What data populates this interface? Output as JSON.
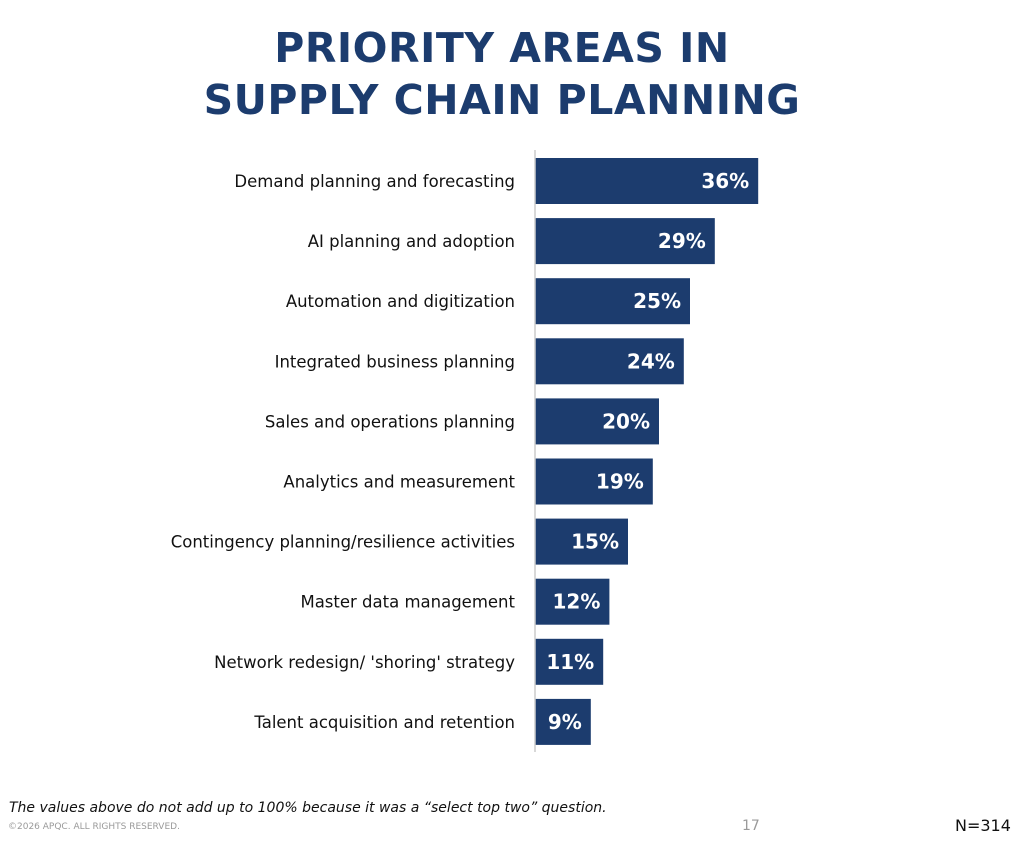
{
  "title_lines": [
    "PRIORITY AREAS IN",
    "SUPPLY CHAIN PLANNING"
  ],
  "footnote": "The values above do not add up to 100% because it was a “select top two” question.",
  "copyright": "©2026 APQC. ALL RIGHTS RESERVED.",
  "page_number": "17",
  "sample_size": "N=314",
  "colors": {
    "bar": "#1c3c6e",
    "title": "#1c3c6e",
    "axis": "#cccccc",
    "bar_label": "#ffffff"
  },
  "chart_data": {
    "type": "bar",
    "orientation": "horizontal",
    "title": "PRIORITY AREAS IN SUPPLY CHAIN PLANNING",
    "xlabel": "",
    "ylabel": "",
    "xlim": [
      0,
      40
    ],
    "grid": false,
    "legend": "none",
    "categories": [
      "Demand planning and forecasting",
      "AI planning and adoption",
      "Automation and digitization",
      "Integrated business planning",
      "Sales and operations planning",
      "Analytics and measurement",
      "Contingency planning/resilience activities",
      "Master data management",
      "Network redesign/ 'shoring' strategy",
      "Talent acquisition and retention"
    ],
    "values": [
      36,
      29,
      25,
      24,
      20,
      19,
      15,
      12,
      11,
      9
    ],
    "value_labels": [
      "36%",
      "29%",
      "25%",
      "24%",
      "20%",
      "19%",
      "15%",
      "12%",
      "11%",
      "9%"
    ]
  }
}
